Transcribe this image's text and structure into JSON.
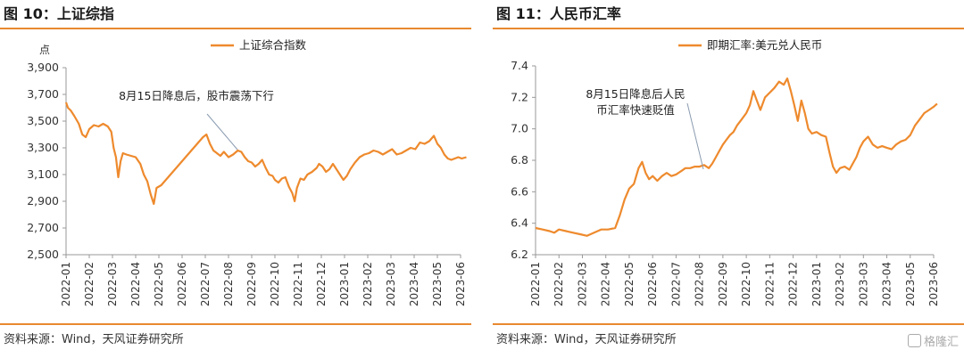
{
  "panels": [
    {
      "title": "图 10：上证综指",
      "source": "资料来源：Wind，天风证券研究所",
      "annotation": [
        "8月15日降息后，股市震荡下行"
      ],
      "chart_data": {
        "type": "line",
        "title": "",
        "ylabel": "点",
        "ylim": [
          2500,
          3900
        ],
        "yticks": [
          2500,
          2700,
          2900,
          3100,
          3300,
          3500,
          3700,
          3900
        ],
        "ytick_labels": [
          "2,500",
          "2,700",
          "2,900",
          "3,100",
          "3,300",
          "3,500",
          "3,700",
          "3,900"
        ],
        "xticks": [
          "2022-01",
          "2022-02",
          "2022-03",
          "2022-04",
          "2022-05",
          "2022-06",
          "2022-07",
          "2022-08",
          "2022-09",
          "2022-10",
          "2022-11",
          "2022-12",
          "2023-01",
          "2023-02",
          "2023-03",
          "2023-04",
          "2023-05",
          "2023-06"
        ],
        "series": [
          {
            "name": "上证综合指数",
            "color": "#ee8a2d",
            "points": [
              [
                0,
                3640
              ],
              [
                0.08,
                3600
              ],
              [
                0.2,
                3580
              ],
              [
                0.35,
                3540
              ],
              [
                0.55,
                3480
              ],
              [
                0.7,
                3400
              ],
              [
                0.85,
                3380
              ],
              [
                1.0,
                3440
              ],
              [
                1.2,
                3470
              ],
              [
                1.4,
                3460
              ],
              [
                1.6,
                3480
              ],
              [
                1.8,
                3460
              ],
              [
                1.95,
                3420
              ],
              [
                2.05,
                3300
              ],
              [
                2.15,
                3230
              ],
              [
                2.25,
                3080
              ],
              [
                2.35,
                3200
              ],
              [
                2.45,
                3260
              ],
              [
                2.6,
                3250
              ],
              [
                2.8,
                3240
              ],
              [
                3.0,
                3230
              ],
              [
                3.2,
                3180
              ],
              [
                3.35,
                3100
              ],
              [
                3.5,
                3050
              ],
              [
                3.65,
                2950
              ],
              [
                3.78,
                2880
              ],
              [
                3.9,
                3000
              ],
              [
                4.1,
                3020
              ],
              [
                4.3,
                3060
              ],
              [
                4.5,
                3100
              ],
              [
                4.7,
                3140
              ],
              [
                4.9,
                3180
              ],
              [
                5.1,
                3220
              ],
              [
                5.3,
                3260
              ],
              [
                5.5,
                3300
              ],
              [
                5.7,
                3340
              ],
              [
                5.9,
                3380
              ],
              [
                6.05,
                3400
              ],
              [
                6.2,
                3330
              ],
              [
                6.35,
                3280
              ],
              [
                6.5,
                3260
              ],
              [
                6.65,
                3240
              ],
              [
                6.8,
                3270
              ],
              [
                7.0,
                3230
              ],
              [
                7.2,
                3250
              ],
              [
                7.4,
                3280
              ],
              [
                7.55,
                3270
              ],
              [
                7.7,
                3230
              ],
              [
                7.85,
                3200
              ],
              [
                8.0,
                3190
              ],
              [
                8.15,
                3160
              ],
              [
                8.3,
                3180
              ],
              [
                8.45,
                3210
              ],
              [
                8.6,
                3150
              ],
              [
                8.75,
                3100
              ],
              [
                8.9,
                3090
              ],
              [
                9.0,
                3060
              ],
              [
                9.15,
                3040
              ],
              [
                9.3,
                3070
              ],
              [
                9.45,
                3080
              ],
              [
                9.6,
                3010
              ],
              [
                9.75,
                2960
              ],
              [
                9.85,
                2900
              ],
              [
                9.95,
                3000
              ],
              [
                10.1,
                3070
              ],
              [
                10.25,
                3060
              ],
              [
                10.4,
                3100
              ],
              [
                10.6,
                3120
              ],
              [
                10.8,
                3150
              ],
              [
                10.9,
                3180
              ],
              [
                11.05,
                3160
              ],
              [
                11.2,
                3120
              ],
              [
                11.35,
                3140
              ],
              [
                11.5,
                3180
              ],
              [
                11.65,
                3140
              ],
              [
                11.8,
                3100
              ],
              [
                11.95,
                3060
              ],
              [
                12.1,
                3090
              ],
              [
                12.25,
                3140
              ],
              [
                12.45,
                3190
              ],
              [
                12.65,
                3230
              ],
              [
                12.85,
                3250
              ],
              [
                13.05,
                3260
              ],
              [
                13.25,
                3280
              ],
              [
                13.45,
                3270
              ],
              [
                13.65,
                3250
              ],
              [
                13.85,
                3270
              ],
              [
                14.05,
                3290
              ],
              [
                14.25,
                3250
              ],
              [
                14.45,
                3260
              ],
              [
                14.65,
                3280
              ],
              [
                14.85,
                3300
              ],
              [
                15.05,
                3290
              ],
              [
                15.25,
                3340
              ],
              [
                15.45,
                3330
              ],
              [
                15.65,
                3350
              ],
              [
                15.85,
                3390
              ],
              [
                16.0,
                3330
              ],
              [
                16.15,
                3300
              ],
              [
                16.3,
                3250
              ],
              [
                16.45,
                3220
              ],
              [
                16.6,
                3210
              ],
              [
                16.75,
                3220
              ],
              [
                16.9,
                3230
              ],
              [
                17.05,
                3220
              ],
              [
                17.25,
                3230
              ]
            ]
          }
        ]
      }
    },
    {
      "title": "图 11：人民币汇率",
      "source": "资料来源：Wind，天风证券研究所",
      "annotation": [
        "8月15日降息后人民",
        "币汇率快速贬值"
      ],
      "watermark": "格隆汇",
      "chart_data": {
        "type": "line",
        "title": "",
        "ylabel": "",
        "ylim": [
          6.2,
          7.4
        ],
        "yticks": [
          6.2,
          6.4,
          6.6,
          6.8,
          7.0,
          7.2,
          7.4
        ],
        "ytick_labels": [
          "6.2",
          "6.4",
          "6.6",
          "6.8",
          "7.0",
          "7.2",
          "7.4"
        ],
        "xticks": [
          "2022-01",
          "2022-02",
          "2022-03",
          "2022-04",
          "2022-05",
          "2022-06",
          "2022-07",
          "2022-08",
          "2022-09",
          "2022-10",
          "2022-11",
          "2022-12",
          "2023-01",
          "2023-02",
          "2023-03",
          "2023-04",
          "2023-05",
          "2023-06"
        ],
        "series": [
          {
            "name": "即期汇率:美元兑人民币",
            "color": "#ee8a2d",
            "points": [
              [
                0,
                6.37
              ],
              [
                0.3,
                6.36
              ],
              [
                0.6,
                6.35
              ],
              [
                0.8,
                6.34
              ],
              [
                1.0,
                6.36
              ],
              [
                1.3,
                6.35
              ],
              [
                1.6,
                6.34
              ],
              [
                1.9,
                6.33
              ],
              [
                2.2,
                6.32
              ],
              [
                2.5,
                6.34
              ],
              [
                2.8,
                6.36
              ],
              [
                3.1,
                6.36
              ],
              [
                3.4,
                6.37
              ],
              [
                3.6,
                6.45
              ],
              [
                3.8,
                6.55
              ],
              [
                4.0,
                6.62
              ],
              [
                4.2,
                6.65
              ],
              [
                4.4,
                6.75
              ],
              [
                4.55,
                6.79
              ],
              [
                4.7,
                6.72
              ],
              [
                4.85,
                6.68
              ],
              [
                5.0,
                6.7
              ],
              [
                5.2,
                6.67
              ],
              [
                5.4,
                6.7
              ],
              [
                5.6,
                6.72
              ],
              [
                5.8,
                6.7
              ],
              [
                6.0,
                6.71
              ],
              [
                6.2,
                6.73
              ],
              [
                6.4,
                6.75
              ],
              [
                6.6,
                6.75
              ],
              [
                6.8,
                6.76
              ],
              [
                7.0,
                6.76
              ],
              [
                7.2,
                6.77
              ],
              [
                7.4,
                6.75
              ],
              [
                7.55,
                6.78
              ],
              [
                7.7,
                6.82
              ],
              [
                7.85,
                6.86
              ],
              [
                8.0,
                6.9
              ],
              [
                8.15,
                6.93
              ],
              [
                8.3,
                6.96
              ],
              [
                8.45,
                6.98
              ],
              [
                8.6,
                7.02
              ],
              [
                8.8,
                7.06
              ],
              [
                9.0,
                7.1
              ],
              [
                9.15,
                7.15
              ],
              [
                9.3,
                7.24
              ],
              [
                9.45,
                7.18
              ],
              [
                9.6,
                7.12
              ],
              [
                9.8,
                7.2
              ],
              [
                10.0,
                7.23
              ],
              [
                10.2,
                7.26
              ],
              [
                10.4,
                7.3
              ],
              [
                10.6,
                7.28
              ],
              [
                10.75,
                7.32
              ],
              [
                10.9,
                7.24
              ],
              [
                11.05,
                7.15
              ],
              [
                11.2,
                7.05
              ],
              [
                11.35,
                7.18
              ],
              [
                11.5,
                7.1
              ],
              [
                11.65,
                7.0
              ],
              [
                11.8,
                6.97
              ],
              [
                12.0,
                6.98
              ],
              [
                12.2,
                6.96
              ],
              [
                12.4,
                6.95
              ],
              [
                12.55,
                6.85
              ],
              [
                12.7,
                6.76
              ],
              [
                12.85,
                6.72
              ],
              [
                13.0,
                6.75
              ],
              [
                13.2,
                6.76
              ],
              [
                13.4,
                6.74
              ],
              [
                13.55,
                6.78
              ],
              [
                13.7,
                6.82
              ],
              [
                13.85,
                6.88
              ],
              [
                14.0,
                6.92
              ],
              [
                14.2,
                6.95
              ],
              [
                14.4,
                6.9
              ],
              [
                14.6,
                6.88
              ],
              [
                14.8,
                6.89
              ],
              [
                15.0,
                6.88
              ],
              [
                15.2,
                6.87
              ],
              [
                15.4,
                6.9
              ],
              [
                15.6,
                6.92
              ],
              [
                15.8,
                6.93
              ],
              [
                16.0,
                6.96
              ],
              [
                16.2,
                7.02
              ],
              [
                16.4,
                7.06
              ],
              [
                16.6,
                7.1
              ],
              [
                16.8,
                7.12
              ],
              [
                17.0,
                7.14
              ],
              [
                17.15,
                7.16
              ]
            ]
          }
        ]
      }
    }
  ]
}
